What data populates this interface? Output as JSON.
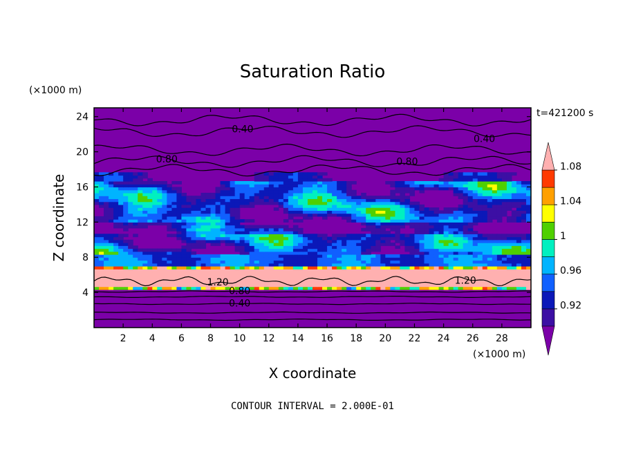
{
  "chart_data": {
    "type": "heatmap",
    "title": "Saturation Ratio",
    "xlabel": "X coordinate",
    "ylabel": "Z coordinate",
    "x_unit": "(×1000 m)",
    "y_unit": "(×1000 m)",
    "time_label": "t=421200 s",
    "footer": "CONTOUR INTERVAL = 2.000E-01",
    "xlim": [
      0,
      30
    ],
    "ylim": [
      0,
      25
    ],
    "x_ticks": [
      "2",
      "4",
      "6",
      "8",
      "10",
      "12",
      "14",
      "16",
      "18",
      "20",
      "22",
      "24",
      "26",
      "28"
    ],
    "y_ticks": [
      "4",
      "8",
      "12",
      "16",
      "20",
      "24"
    ],
    "colorbar": {
      "levels": [
        0.9,
        0.92,
        0.94,
        0.96,
        0.98,
        1.0,
        1.02,
        1.04,
        1.06,
        1.08,
        1.1
      ],
      "colors": [
        "#7b00a8",
        "#3c0fa4",
        "#0b18b8",
        "#1060ff",
        "#00b4ff",
        "#00f0c0",
        "#4fd000",
        "#ffff00",
        "#ffa000",
        "#ff3a00",
        "#ffb0b0"
      ],
      "tick_labels": [
        "0.92",
        "0.96",
        "1",
        "1.04",
        "1.08"
      ],
      "tick_values": [
        0.92,
        0.96,
        1.0,
        1.04,
        1.08
      ]
    },
    "contour_labels": [
      {
        "text": "0.40",
        "x": 10.2,
        "y": 22.2
      },
      {
        "text": "0.40",
        "x": 26.8,
        "y": 21.1
      },
      {
        "text": "0.80",
        "x": 5.0,
        "y": 18.8
      },
      {
        "text": "0.80",
        "x": 21.5,
        "y": 18.5
      },
      {
        "text": "1.20",
        "x": 8.5,
        "y": 4.8
      },
      {
        "text": "1.20",
        "x": 25.5,
        "y": 5.0
      },
      {
        "text": "0.80",
        "x": 10.0,
        "y": 3.8
      },
      {
        "text": "0.40",
        "x": 10.0,
        "y": 2.4
      }
    ],
    "bands": [
      {
        "y0": 0.0,
        "y1": 4.2,
        "value": 0.4
      },
      {
        "y0": 4.2,
        "y1": 7.0,
        "value": 1.1
      },
      {
        "y0": 7.0,
        "y1": 10.5,
        "value": 0.98
      },
      {
        "y0": 10.5,
        "y1": 13.5,
        "value": 0.96
      },
      {
        "y0": 13.5,
        "y1": 17.5,
        "value": 1.0
      },
      {
        "y0": 17.5,
        "y1": 25.0,
        "value": 0.5
      }
    ]
  }
}
